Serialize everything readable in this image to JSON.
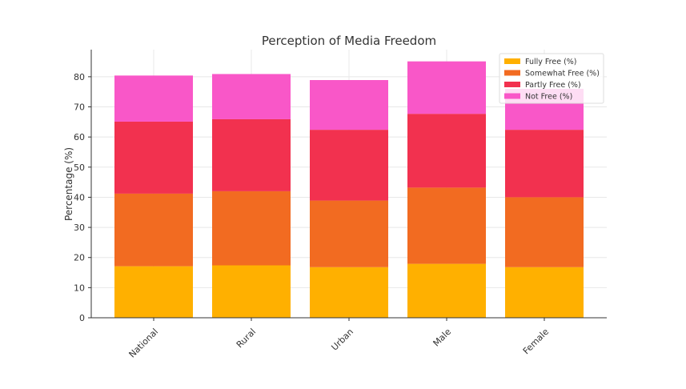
{
  "chart_data": {
    "type": "bar",
    "stacked": true,
    "title": "Perception of Media Freedom",
    "xlabel": "",
    "ylabel": "Percentage (%)",
    "ylim": [
      0,
      89
    ],
    "yticks": [
      0,
      10,
      20,
      30,
      40,
      50,
      60,
      70,
      80
    ],
    "grid": true,
    "legend_placement": "top-right",
    "categories": [
      "National",
      "Rural",
      "Urban",
      "Male",
      "Female"
    ],
    "series": [
      {
        "name": "Fully Free (%)",
        "color": "#FFB000",
        "values": [
          17.1,
          17.4,
          16.8,
          17.9,
          16.8
        ]
      },
      {
        "name": "Somewhat Free (%)",
        "color": "#F26B21",
        "values": [
          24.1,
          24.6,
          22.1,
          25.3,
          23.2
        ]
      },
      {
        "name": "Partly Free (%)",
        "color": "#F2314F",
        "values": [
          23.9,
          23.9,
          23.5,
          24.5,
          22.4
        ]
      },
      {
        "name": "Not Free (%)",
        "color": "#F957C8",
        "values": [
          15.3,
          15.0,
          16.5,
          17.4,
          13.6
        ]
      }
    ]
  }
}
